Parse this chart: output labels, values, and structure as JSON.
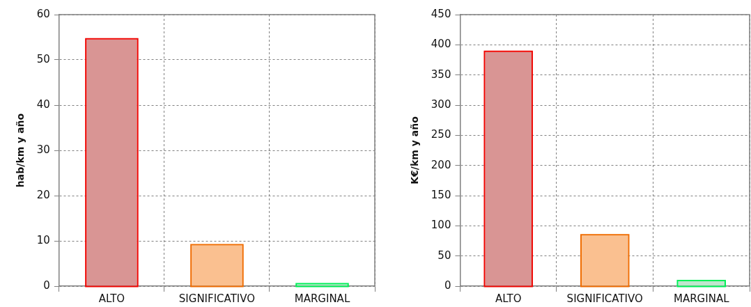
{
  "chart_data": [
    {
      "type": "bar",
      "ylabel": "hab/km y año",
      "categories": [
        "ALTO",
        "SIGNIFICATIVO",
        "MARGINAL"
      ],
      "values": [
        54.5,
        9,
        0.4
      ],
      "colors": [
        "#d99594",
        "#fac090",
        "#bfe5cd"
      ],
      "ylim": [
        0,
        60
      ],
      "yticks": [
        0,
        10,
        20,
        30,
        40,
        50,
        60
      ],
      "grid": true
    },
    {
      "type": "bar",
      "ylabel": "K€/km y año",
      "categories": [
        "ALTO",
        "SIGNIFICATIVO",
        "MARGINAL"
      ],
      "values": [
        388,
        84,
        8
      ],
      "colors": [
        "#d99594",
        "#fac090",
        "#bfe5cd"
      ],
      "ylim": [
        0,
        450
      ],
      "yticks": [
        0,
        50,
        100,
        150,
        200,
        250,
        300,
        350,
        400,
        450
      ],
      "grid": true
    }
  ]
}
